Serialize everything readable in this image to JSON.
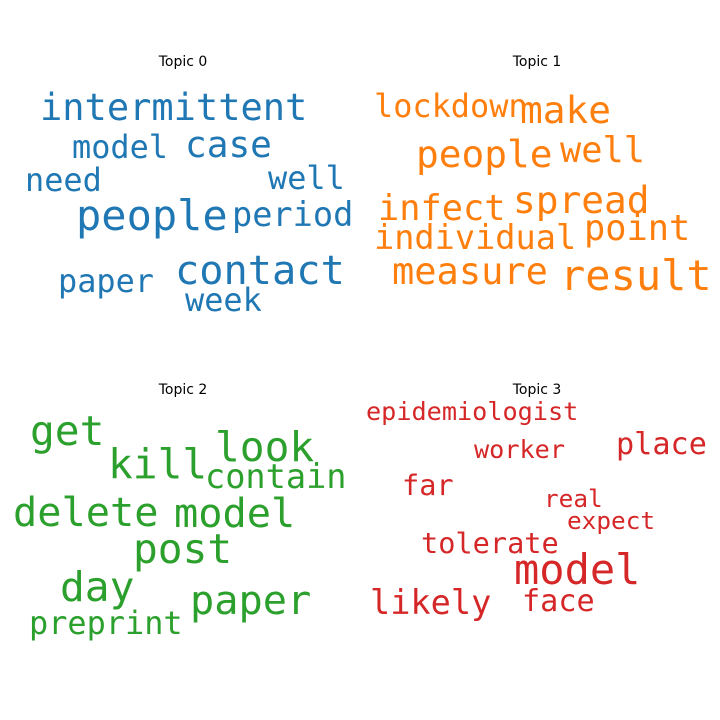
{
  "chart_data": [
    {
      "type": "wordcloud",
      "title": "Topic 0",
      "color": "#1f77b4",
      "words": [
        {
          "text": "intermittent",
          "weight": 0.88
        },
        {
          "text": "model",
          "weight": 0.76
        },
        {
          "text": "case",
          "weight": 0.86
        },
        {
          "text": "need",
          "weight": 0.76
        },
        {
          "text": "well",
          "weight": 0.76
        },
        {
          "text": "people",
          "weight": 1.0
        },
        {
          "text": "period",
          "weight": 0.8
        },
        {
          "text": "contact",
          "weight": 0.96
        },
        {
          "text": "paper",
          "weight": 0.76
        },
        {
          "text": "week",
          "weight": 0.76
        }
      ]
    },
    {
      "type": "wordcloud",
      "title": "Topic 1",
      "color": "#ff7f0e",
      "words": [
        {
          "text": "lockdown",
          "weight": 0.76
        },
        {
          "text": "make",
          "weight": 0.9
        },
        {
          "text": "people",
          "weight": 0.9
        },
        {
          "text": "well",
          "weight": 0.84
        },
        {
          "text": "spread",
          "weight": 0.9
        },
        {
          "text": "infect",
          "weight": 0.84
        },
        {
          "text": "point",
          "weight": 0.84
        },
        {
          "text": "individual",
          "weight": 0.8
        },
        {
          "text": "measure",
          "weight": 0.88
        },
        {
          "text": "result",
          "weight": 1.0
        }
      ]
    },
    {
      "type": "wordcloud",
      "title": "Topic 2",
      "color": "#2ca02c",
      "words": [
        {
          "text": "get",
          "weight": 0.98
        },
        {
          "text": "look",
          "weight": 0.98
        },
        {
          "text": "kill",
          "weight": 0.98
        },
        {
          "text": "contain",
          "weight": 0.8
        },
        {
          "text": "delete",
          "weight": 0.96
        },
        {
          "text": "model",
          "weight": 0.96
        },
        {
          "text": "post",
          "weight": 0.98
        },
        {
          "text": "day",
          "weight": 0.98
        },
        {
          "text": "paper",
          "weight": 0.96
        },
        {
          "text": "preprint",
          "weight": 0.76
        }
      ]
    },
    {
      "type": "wordcloud",
      "title": "Topic 3",
      "color": "#d62728",
      "words": [
        {
          "text": "epidemiologist",
          "weight": 0.6
        },
        {
          "text": "worker",
          "weight": 0.6
        },
        {
          "text": "place",
          "weight": 0.72
        },
        {
          "text": "far",
          "weight": 0.68
        },
        {
          "text": "real",
          "weight": 0.58
        },
        {
          "text": "expect",
          "weight": 0.58
        },
        {
          "text": "tolerate",
          "weight": 0.68
        },
        {
          "text": "model",
          "weight": 1.0
        },
        {
          "text": "likely",
          "weight": 0.8
        },
        {
          "text": "face",
          "weight": 0.72
        }
      ]
    }
  ]
}
